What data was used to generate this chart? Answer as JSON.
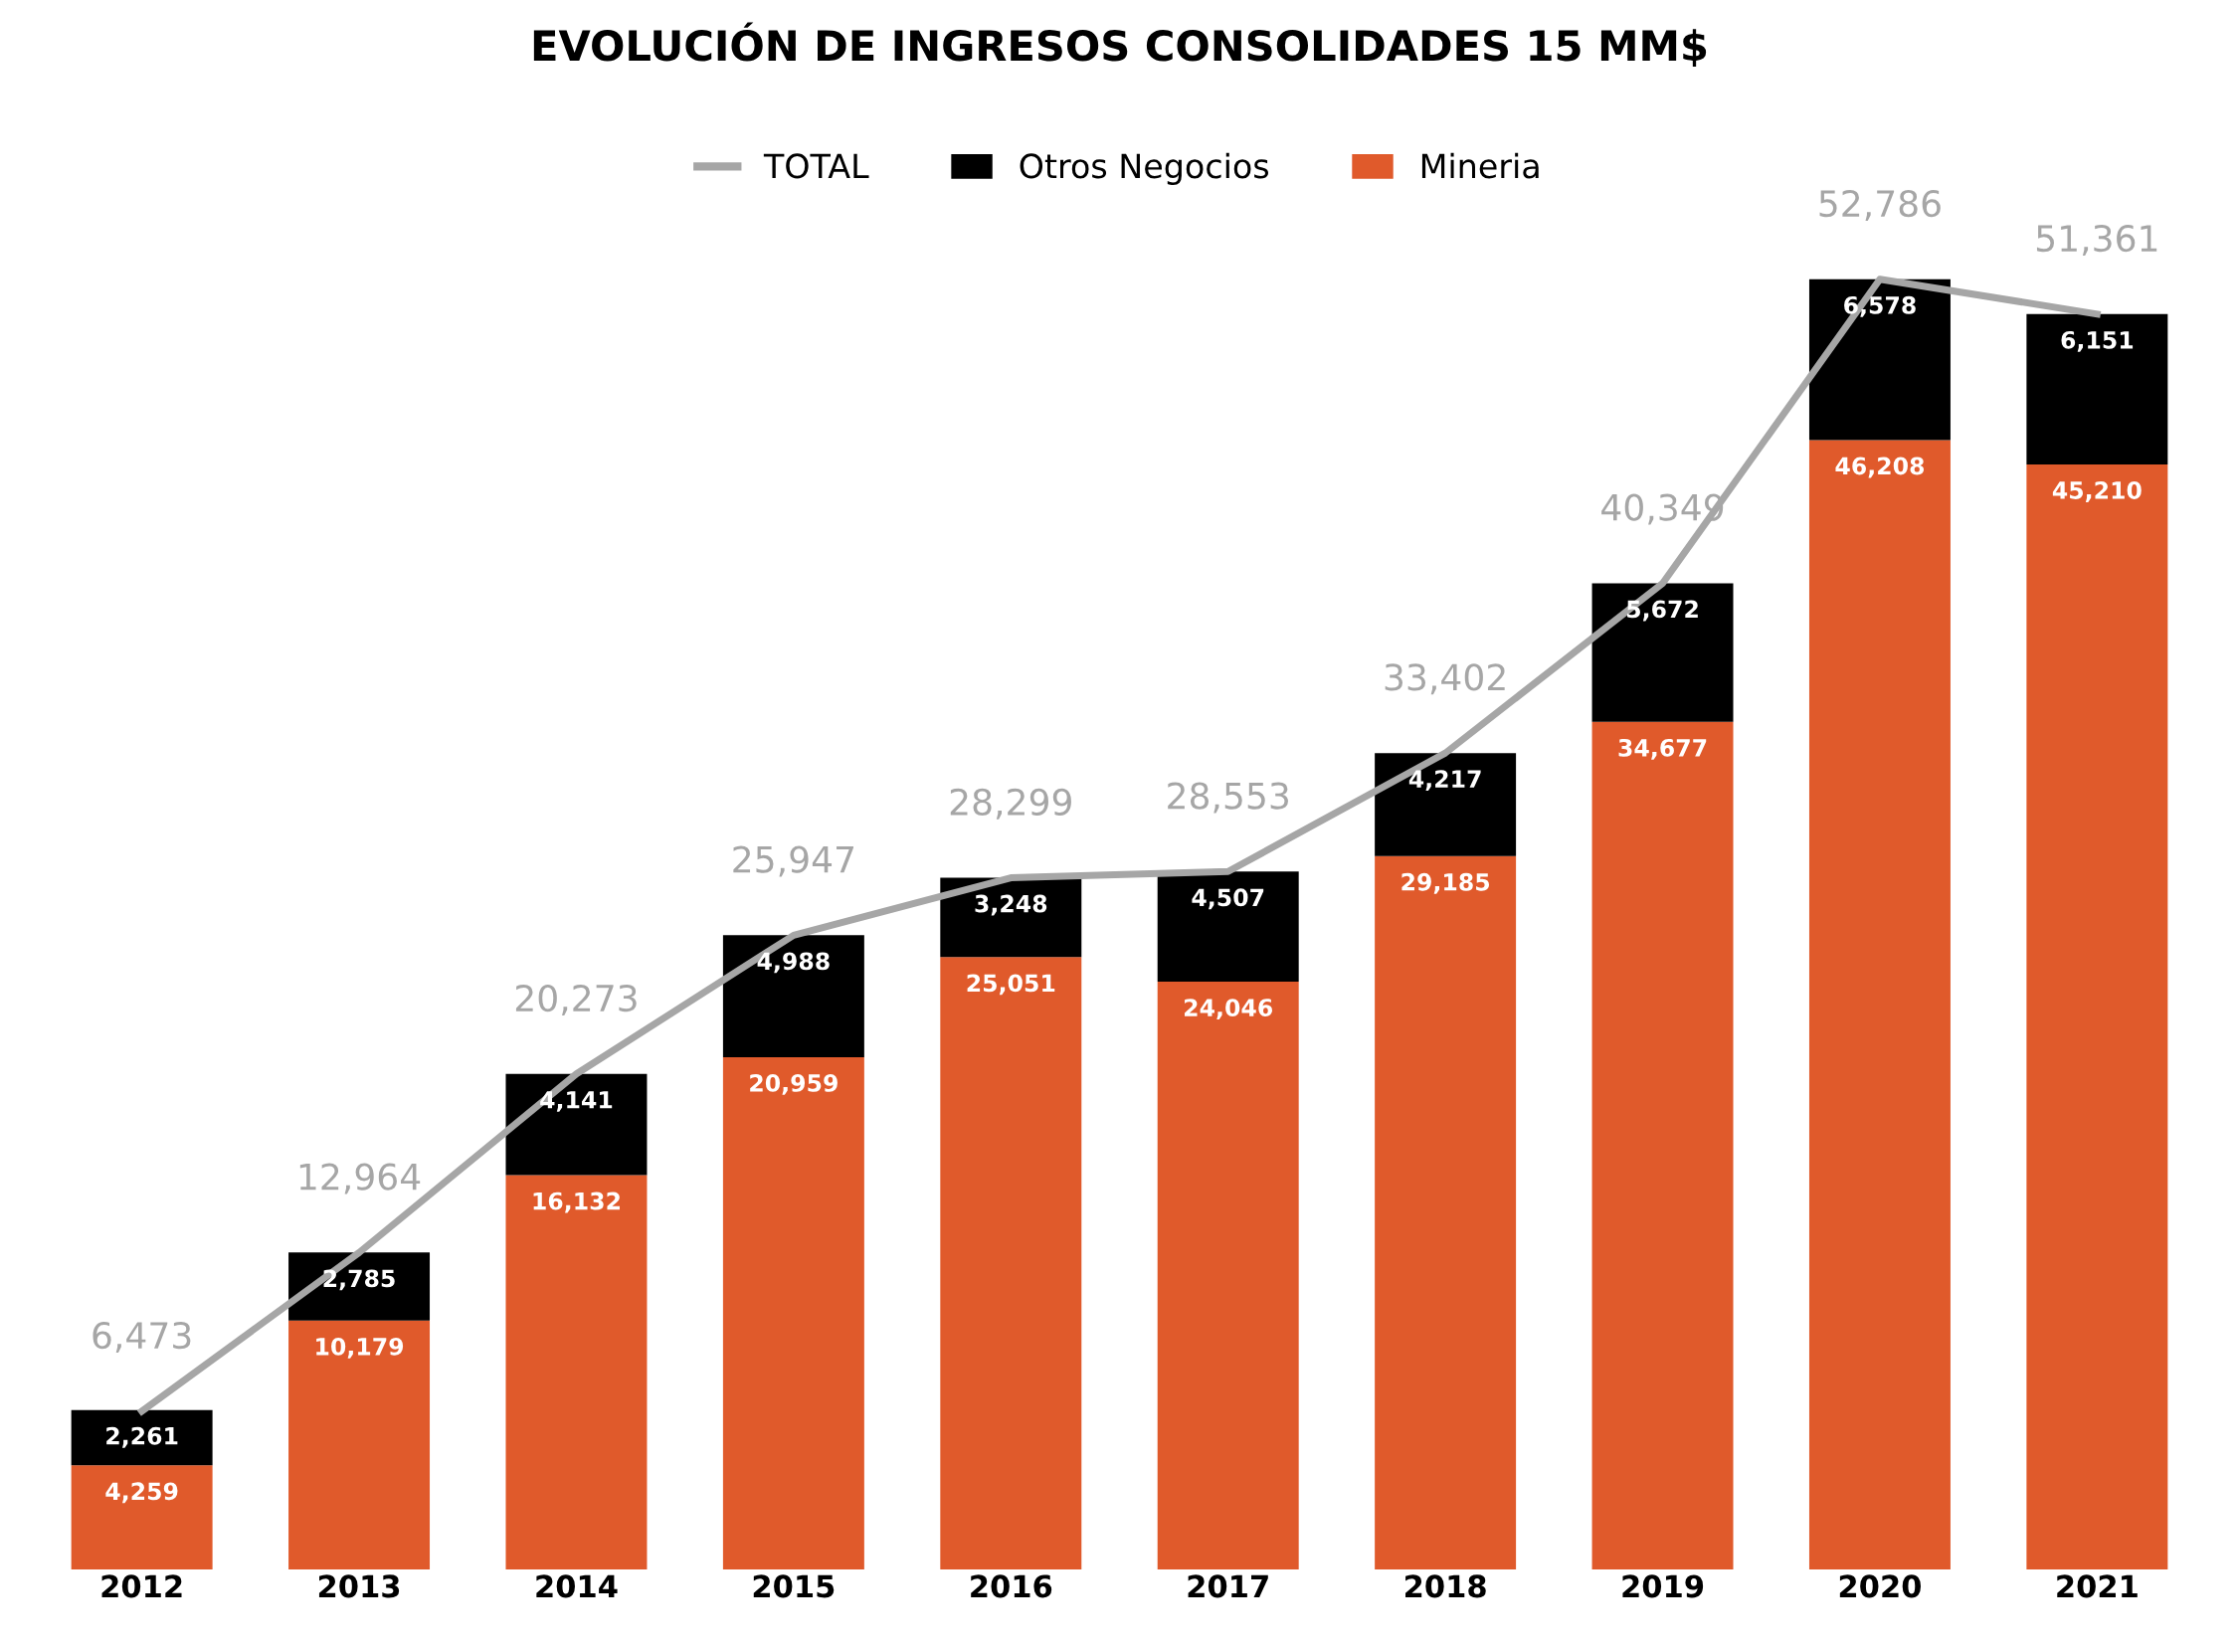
{
  "chart_data": {
    "type": "bar",
    "title": "EVOLUCIÓN DE INGRESOS CONSOLIDADES 15 MM$",
    "categories": [
      "2012",
      "2013",
      "2014",
      "2015",
      "2016",
      "2017",
      "2018",
      "2019",
      "2020",
      "2021"
    ],
    "stacked": true,
    "legend": "top",
    "grid": false,
    "series": [
      {
        "name": "TOTAL",
        "type": "line",
        "color": "#a6a6a6",
        "values": [
          6473,
          12964,
          20273,
          25947,
          28299,
          28553,
          33402,
          40349,
          52786,
          51361
        ],
        "value_labels": [
          "6,473",
          "12,964",
          "20,273",
          "25,947",
          "28,299",
          "28,553",
          "33,402",
          "40,349",
          "52,786",
          "51,361"
        ]
      },
      {
        "name": "Otros Negocios",
        "color": "#000000",
        "values": [
          2261,
          2785,
          4141,
          4988,
          3248,
          4507,
          4217,
          5672,
          6578,
          6151
        ],
        "value_labels": [
          "2,261",
          "2,785",
          "4,141",
          "4,988",
          "3,248",
          "4,507",
          "4,217",
          "5,672",
          "6,578",
          "6,151"
        ]
      },
      {
        "name": "Mineria",
        "color": "#e05a2b",
        "values": [
          4259,
          10179,
          16132,
          20959,
          25051,
          24046,
          29185,
          34677,
          46208,
          45210
        ],
        "value_labels": [
          "4,259",
          "10,179",
          "16,132",
          "20,959",
          "25,051",
          "24,046",
          "29,185",
          "34,677",
          "46,208",
          "45,210"
        ]
      }
    ]
  }
}
